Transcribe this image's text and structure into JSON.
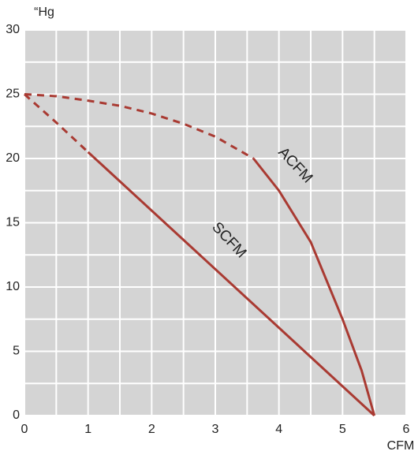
{
  "chart_data": {
    "type": "line",
    "y_label": "“Hg",
    "x_label": "CFM",
    "xlim": [
      0,
      6
    ],
    "ylim": [
      0,
      30
    ],
    "xticks": [
      0,
      1,
      2,
      3,
      4,
      5,
      6
    ],
    "yticks": [
      0,
      5,
      10,
      15,
      20,
      25,
      30
    ],
    "x_minor_ticks": [
      0.5,
      1.5,
      2.5,
      3.5,
      4.5,
      5.5
    ],
    "y_minor_ticks": [
      2.5,
      7.5,
      12.5,
      17.5,
      22.5,
      27.5
    ],
    "grid": true,
    "plot_background": "#d4d4d4",
    "grid_color": "#ffffff",
    "series": [
      {
        "name": "ACFM",
        "color": "#a93a32",
        "dashed": false,
        "x": [
          3.6,
          4,
          4.5,
          5,
          5.3,
          5.5
        ],
        "values": [
          20,
          17.5,
          13.5,
          7.5,
          3.5,
          0
        ]
      },
      {
        "color": "#a93a32",
        "dashed": true,
        "x": [
          0,
          0.5,
          1,
          1.5,
          2,
          2.5,
          3,
          3.6
        ],
        "values": [
          25,
          24.85,
          24.5,
          24.1,
          23.5,
          22.7,
          21.7,
          20
        ]
      },
      {
        "name": "SCFM",
        "color": "#a93a32",
        "dashed": false,
        "x": [
          1,
          5.5
        ],
        "values": [
          20.5,
          0
        ]
      },
      {
        "color": "#a93a32",
        "dashed": true,
        "x": [
          0,
          0.5,
          1
        ],
        "values": [
          25,
          22.8,
          20.5
        ]
      }
    ]
  }
}
